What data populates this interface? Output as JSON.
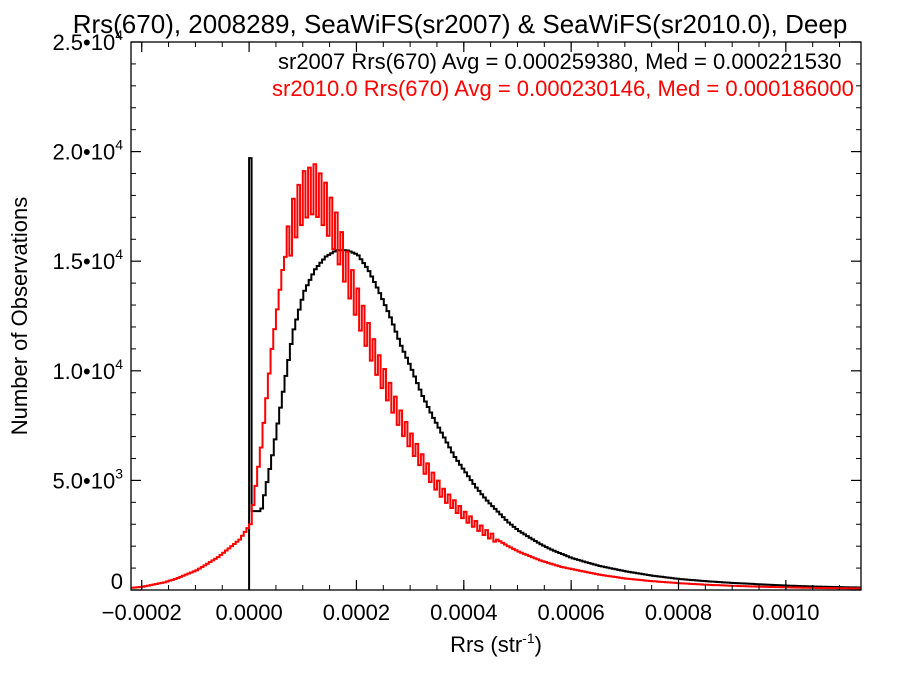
{
  "chart_data": {
    "type": "line",
    "title": "Rrs(670), 2008289, SeaWiFS(sr2007) & SeaWiFS(sr2010.0), Deep",
    "xlabel": "Rrs (str",
    "xlabel_sup": "-1",
    "xlabel_end": ")",
    "ylabel": "Number of Observations",
    "xlim": [
      -0.00022,
      0.00114
    ],
    "ylim": [
      0,
      25000
    ],
    "x_ticks": [
      {
        "v": -0.0002,
        "label": "-0.0002"
      },
      {
        "v": 0.0,
        "label": "0.0000"
      },
      {
        "v": 0.0002,
        "label": "0.0002"
      },
      {
        "v": 0.0004,
        "label": "0.0004"
      },
      {
        "v": 0.0006,
        "label": "0.0006"
      },
      {
        "v": 0.0008,
        "label": "0.0008"
      },
      {
        "v": 0.001,
        "label": "0.0010"
      }
    ],
    "y_ticks": [
      {
        "v": 0,
        "base": "0",
        "exp": ""
      },
      {
        "v": 5000,
        "base": "5.0•10",
        "exp": "3"
      },
      {
        "v": 10000,
        "base": "1.0•10",
        "exp": "4"
      },
      {
        "v": 15000,
        "base": "1.5•10",
        "exp": "4"
      },
      {
        "v": 20000,
        "base": "2.0•10",
        "exp": "4"
      },
      {
        "v": 25000,
        "base": "2.5•10",
        "exp": "4"
      }
    ],
    "legend_placement": "top",
    "stats": [
      {
        "text": "sr2007 Rrs(670) Avg = 0.000259380, Med = 0.000221530",
        "color": "#000000"
      },
      {
        "text": "sr2010.0 Rrs(670) Avg = 0.000230146, Med = 0.000186000",
        "color": "#ff0000"
      }
    ],
    "series": [
      {
        "name": "sr2007",
        "color": "#000000",
        "x": [
          0.0,
          2e-05,
          4e-05,
          6e-05,
          8e-05,
          0.0001,
          0.00012,
          0.00014,
          0.00016,
          0.00018,
          0.0002,
          0.00022,
          0.00024,
          0.00026,
          0.00028,
          0.0003,
          0.00032,
          0.00034,
          0.00036,
          0.00038,
          0.0004,
          0.00042,
          0.00044,
          0.00046,
          0.00048,
          0.0005,
          0.00052,
          0.00054,
          0.00056,
          0.00058,
          0.0006,
          0.00065,
          0.0007,
          0.00075,
          0.0008,
          0.00085,
          0.0009,
          0.00095,
          0.001,
          0.00105,
          0.0011,
          0.00114
        ],
        "y": [
          19700,
          3600,
          6000,
          8900,
          11800,
          13600,
          14600,
          15200,
          15500,
          15500,
          15300,
          14600,
          13600,
          12500,
          11200,
          10100,
          8900,
          7900,
          7000,
          6100,
          5400,
          4700,
          4100,
          3600,
          3100,
          2700,
          2400,
          2100,
          1850,
          1650,
          1450,
          1100,
          850,
          650,
          500,
          400,
          320,
          260,
          200,
          160,
          130,
          110
        ]
      },
      {
        "name": "sr2010.0",
        "color": "#ff0000",
        "x": [
          -0.00022,
          -0.0002,
          -0.00018,
          -0.00016,
          -0.00014,
          -0.00012,
          -0.0001,
          -8e-05,
          -6e-05,
          -4e-05,
          -2e-05,
          0.0,
          2e-05,
          4e-05,
          6e-05,
          8e-05,
          0.0001,
          0.00012,
          0.00014,
          0.00016,
          0.00018,
          0.0002,
          0.00022,
          0.00024,
          0.00026,
          0.00028,
          0.0003,
          0.00032,
          0.00034,
          0.00036,
          0.00038,
          0.0004,
          0.00042,
          0.00044,
          0.00046,
          0.00048,
          0.0005,
          0.00052,
          0.00054,
          0.00056,
          0.00058,
          0.0006,
          0.00065,
          0.0007,
          0.00075,
          0.0008,
          0.00085,
          0.0009,
          0.00095,
          0.001,
          0.00105,
          0.0011,
          0.00114
        ],
        "y": [
          100,
          150,
          250,
          350,
          500,
          700,
          900,
          1200,
          1500,
          1900,
          2300,
          3000,
          6500,
          11000,
          14600,
          17000,
          18200,
          18500,
          17700,
          16400,
          14700,
          13100,
          11600,
          10200,
          9000,
          7800,
          6800,
          5900,
          5100,
          4400,
          3900,
          3400,
          3000,
          2600,
          2300,
          2000,
          1750,
          1550,
          1350,
          1200,
          1050,
          950,
          700,
          520,
          400,
          310,
          240,
          190,
          150,
          120,
          95,
          80,
          70
        ]
      }
    ]
  }
}
